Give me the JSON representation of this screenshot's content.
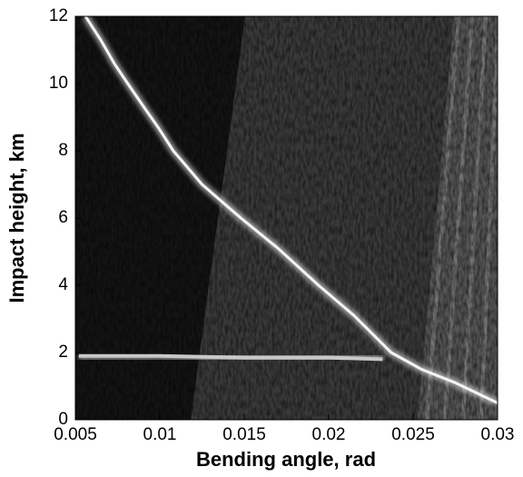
{
  "chart_data": {
    "type": "line",
    "xlabel": "Bending angle, rad",
    "ylabel": "Impact height, km",
    "xlim": [
      0.005,
      0.03
    ],
    "xticks": [
      0.005,
      0.01,
      0.015,
      0.02,
      0.025,
      0.03
    ],
    "ylim": [
      0,
      12
    ],
    "yticks": [
      0,
      2,
      4,
      6,
      8,
      10,
      12
    ],
    "series": [
      {
        "color": "#f4f4f4",
        "x": [
          0.0056,
          0.0065,
          0.0073,
          0.0081,
          0.0092,
          0.0099,
          0.0108,
          0.0125,
          0.0148,
          0.017,
          0.0194,
          0.0215,
          0.0237,
          0.0255,
          0.0275,
          0.03
        ],
        "values": [
          12,
          11.3,
          10.6,
          10,
          9.2,
          8.7,
          8,
          7,
          6,
          5.1,
          4,
          3.1,
          2,
          1.5,
          1.1,
          0.5
        ]
      },
      {
        "color": "#c8c8c8",
        "x": [
          0.0052,
          0.01,
          0.015,
          0.02,
          0.0232
        ],
        "values": [
          1.9,
          1.9,
          1.85,
          1.85,
          1.8
        ]
      }
    ]
  }
}
